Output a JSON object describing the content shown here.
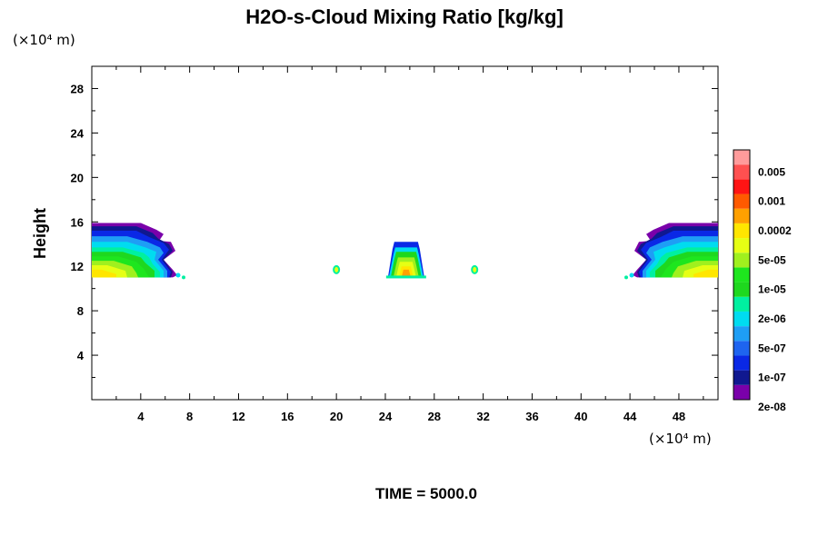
{
  "chart_data": {
    "type": "heatmap",
    "title": "H2O-s-Cloud Mixing Ratio [kg/kg]",
    "xlabel": "",
    "ylabel": "Height",
    "x_unit": "(×10⁴ m)",
    "y_unit": "(×10⁴ m)",
    "xlim": [
      0,
      51.2
    ],
    "ylim": [
      0,
      30
    ],
    "x_ticks": [
      4,
      8,
      12,
      16,
      20,
      24,
      28,
      32,
      36,
      40,
      44,
      48
    ],
    "y_ticks": [
      4,
      8,
      12,
      16,
      20,
      24,
      28
    ],
    "colorbar": {
      "levels": [
        "0.005",
        "0.001",
        "0.0002",
        "5e-05",
        "1e-05",
        "2e-06",
        "5e-07",
        "1e-07",
        "2e-08"
      ],
      "colors": [
        "#7a00aa",
        "#101890",
        "#0a28e6",
        "#1e64f0",
        "#1e9ef5",
        "#00dcf0",
        "#00f0a0",
        "#1ed81e",
        "#1ee61e",
        "#a0f01e",
        "#e6ff14",
        "#ffe600",
        "#ffa000",
        "#ff5a00",
        "#ff1414",
        "#ff5050",
        "#ff9b9b"
      ]
    },
    "cloud_regions": [
      {
        "name": "left-anvil",
        "x_range": [
          0,
          7.6
        ],
        "y_range": [
          11,
          15.9
        ]
      },
      {
        "name": "center-cell",
        "x_range": [
          24.2,
          27.2
        ],
        "y_range": [
          11,
          14.2
        ]
      },
      {
        "name": "speck-left",
        "x": 20,
        "y": 11.7
      },
      {
        "name": "speck-right",
        "x": 31.3,
        "y": 11.7
      },
      {
        "name": "right-anvil",
        "x_range": [
          43.5,
          51.2
        ],
        "y_range": [
          11,
          15.9
        ]
      }
    ],
    "grid": false,
    "legend": "right-colorbar"
  },
  "footer": {
    "time_text": "TIME = 5000.0"
  }
}
